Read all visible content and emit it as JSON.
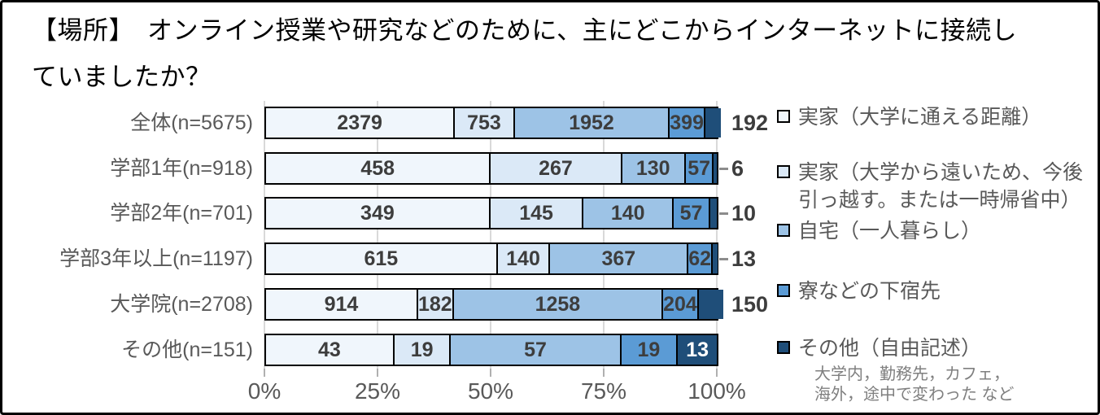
{
  "title_display": "【場所】　オンライン授業や研究などのために、主にどこからインターネットに接続し\nていましたか？",
  "chart_data": {
    "type": "bar",
    "variant": "100-percent-stacked-horizontal",
    "title": "【場所】 オンライン授業や研究などのために、主にどこからインターネットに接続していましたか？",
    "grid": true,
    "legend_position": "right",
    "x_range_percent": [
      0,
      100
    ],
    "x_ticks": [
      "0%",
      "25%",
      "50%",
      "75%",
      "100%"
    ],
    "categories": [
      "全体(n=5675)",
      "学部1年(n=918)",
      "学部2年(n=701)",
      "学部3年以上(n=1197)",
      "大学院(n=2708)",
      "その他(n=151)"
    ],
    "totals": [
      5675,
      918,
      701,
      1197,
      2708,
      151
    ],
    "series": [
      {
        "name": "実家（大学に通える距離）",
        "color": "#f0f6fc",
        "values": [
          2379,
          458,
          349,
          615,
          914,
          43
        ]
      },
      {
        "name": "実家（大学から遠いため、今後引っ越す。または一時帰省中）",
        "color": "#dbe9f7",
        "values": [
          753,
          267,
          145,
          140,
          182,
          19
        ]
      },
      {
        "name": "自宅（一人暮らし）",
        "color": "#9dc3e6",
        "values": [
          1952,
          130,
          140,
          367,
          1258,
          57
        ]
      },
      {
        "name": "寮などの下宿先",
        "color": "#5b9bd5",
        "values": [
          399,
          57,
          57,
          62,
          204,
          19
        ]
      },
      {
        "name": "その他（自由記述）",
        "color": "#1f4e79",
        "values": [
          192,
          6,
          10,
          13,
          150,
          13
        ]
      }
    ],
    "last_value_label_placement": [
      "outside",
      "leader-outside",
      "leader-outside",
      "leader-outside",
      "outside",
      "inside-white"
    ],
    "legend_note": "大学内，勤務先，カフェ，\n海外，途中で変わった など"
  },
  "colors": {
    "title_text": "#000000",
    "axis_text": "#595959",
    "value_text": "#3d3d3d",
    "grid_line": "#d9d9d9",
    "segment_border": "#000000",
    "note_text": "#7f7f7f",
    "frame_border": "#000000",
    "background": "#ffffff"
  }
}
